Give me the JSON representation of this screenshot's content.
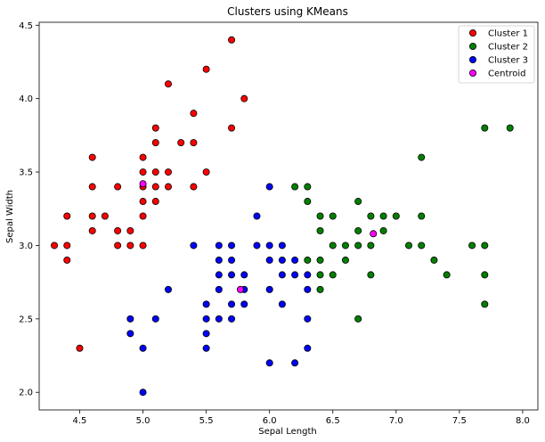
{
  "chart_data": {
    "type": "scatter",
    "title": "Clusters using KMeans",
    "xlabel": "Sepal Length",
    "ylabel": "Sepal Width",
    "xlim": [
      4.18,
      8.12
    ],
    "ylim": [
      1.88,
      4.52
    ],
    "xticks": [
      "4.5",
      "5.0",
      "5.5",
      "6.0",
      "6.5",
      "7.0",
      "7.5",
      "8.0"
    ],
    "yticks": [
      "2.0",
      "2.5",
      "3.0",
      "3.5",
      "4.0",
      "4.5"
    ],
    "legend_position": "top-right",
    "grid": false,
    "series": [
      {
        "name": "Cluster 1",
        "color": "#ff0000",
        "points": [
          [
            4.3,
            3.0
          ],
          [
            4.4,
            3.0
          ],
          [
            4.4,
            3.2
          ],
          [
            4.4,
            2.9
          ],
          [
            4.5,
            2.3
          ],
          [
            4.6,
            3.6
          ],
          [
            4.6,
            3.4
          ],
          [
            4.6,
            3.2
          ],
          [
            4.6,
            3.1
          ],
          [
            4.7,
            3.2
          ],
          [
            4.8,
            3.4
          ],
          [
            4.8,
            3.1
          ],
          [
            4.8,
            3.0
          ],
          [
            4.9,
            3.1
          ],
          [
            4.9,
            3.0
          ],
          [
            5.0,
            3.6
          ],
          [
            5.0,
            3.5
          ],
          [
            5.0,
            3.4
          ],
          [
            5.0,
            3.3
          ],
          [
            5.0,
            3.2
          ],
          [
            5.0,
            3.0
          ],
          [
            5.1,
            3.8
          ],
          [
            5.1,
            3.7
          ],
          [
            5.1,
            3.5
          ],
          [
            5.1,
            3.4
          ],
          [
            5.1,
            3.3
          ],
          [
            5.2,
            4.1
          ],
          [
            5.2,
            3.5
          ],
          [
            5.2,
            3.4
          ],
          [
            5.3,
            3.7
          ],
          [
            5.4,
            3.9
          ],
          [
            5.4,
            3.7
          ],
          [
            5.4,
            3.4
          ],
          [
            5.5,
            4.2
          ],
          [
            5.5,
            3.5
          ],
          [
            5.7,
            4.4
          ],
          [
            5.7,
            3.8
          ],
          [
            5.8,
            4.0
          ]
        ]
      },
      {
        "name": "Cluster 2",
        "color": "#008000",
        "points": [
          [
            6.2,
            3.4
          ],
          [
            6.3,
            3.4
          ],
          [
            6.3,
            3.3
          ],
          [
            6.3,
            2.9
          ],
          [
            6.4,
            3.2
          ],
          [
            6.4,
            3.1
          ],
          [
            6.4,
            2.9
          ],
          [
            6.4,
            2.8
          ],
          [
            6.4,
            2.7
          ],
          [
            6.5,
            3.2
          ],
          [
            6.5,
            3.0
          ],
          [
            6.5,
            2.8
          ],
          [
            6.6,
            3.0
          ],
          [
            6.6,
            2.9
          ],
          [
            6.7,
            3.3
          ],
          [
            6.7,
            3.1
          ],
          [
            6.7,
            3.0
          ],
          [
            6.7,
            2.5
          ],
          [
            6.8,
            3.2
          ],
          [
            6.8,
            3.0
          ],
          [
            6.8,
            2.8
          ],
          [
            6.9,
            3.2
          ],
          [
            6.9,
            3.1
          ],
          [
            7.0,
            3.2
          ],
          [
            7.1,
            3.0
          ],
          [
            7.2,
            3.6
          ],
          [
            7.2,
            3.2
          ],
          [
            7.2,
            3.0
          ],
          [
            7.3,
            2.9
          ],
          [
            7.4,
            2.8
          ],
          [
            7.6,
            3.0
          ],
          [
            7.7,
            3.8
          ],
          [
            7.7,
            3.0
          ],
          [
            7.7,
            2.8
          ],
          [
            7.7,
            2.6
          ],
          [
            7.9,
            3.8
          ]
        ]
      },
      {
        "name": "Cluster 3",
        "color": "#0000ff",
        "points": [
          [
            4.9,
            2.5
          ],
          [
            4.9,
            2.4
          ],
          [
            5.0,
            2.3
          ],
          [
            5.0,
            2.0
          ],
          [
            5.1,
            2.5
          ],
          [
            5.2,
            2.7
          ],
          [
            5.4,
            3.0
          ],
          [
            5.5,
            2.6
          ],
          [
            5.5,
            2.5
          ],
          [
            5.5,
            2.4
          ],
          [
            5.5,
            2.3
          ],
          [
            5.6,
            3.0
          ],
          [
            5.6,
            2.9
          ],
          [
            5.6,
            2.8
          ],
          [
            5.6,
            2.7
          ],
          [
            5.6,
            2.5
          ],
          [
            5.7,
            3.0
          ],
          [
            5.7,
            2.9
          ],
          [
            5.7,
            2.8
          ],
          [
            5.7,
            2.6
          ],
          [
            5.7,
            2.5
          ],
          [
            5.8,
            2.8
          ],
          [
            5.8,
            2.7
          ],
          [
            5.8,
            2.6
          ],
          [
            5.9,
            3.2
          ],
          [
            5.9,
            3.0
          ],
          [
            6.0,
            3.4
          ],
          [
            6.0,
            3.0
          ],
          [
            6.0,
            2.9
          ],
          [
            6.0,
            2.7
          ],
          [
            6.0,
            2.2
          ],
          [
            6.1,
            3.0
          ],
          [
            6.1,
            2.9
          ],
          [
            6.1,
            2.8
          ],
          [
            6.1,
            2.6
          ],
          [
            6.2,
            2.9
          ],
          [
            6.2,
            2.8
          ],
          [
            6.2,
            2.2
          ],
          [
            6.3,
            2.8
          ],
          [
            6.3,
            2.7
          ],
          [
            6.3,
            2.5
          ],
          [
            6.3,
            2.3
          ]
        ]
      },
      {
        "name": "Centroid",
        "color": "#ff00ff",
        "points": [
          [
            5.0,
            3.42
          ],
          [
            6.82,
            3.08
          ],
          [
            5.77,
            2.7
          ]
        ]
      }
    ]
  }
}
